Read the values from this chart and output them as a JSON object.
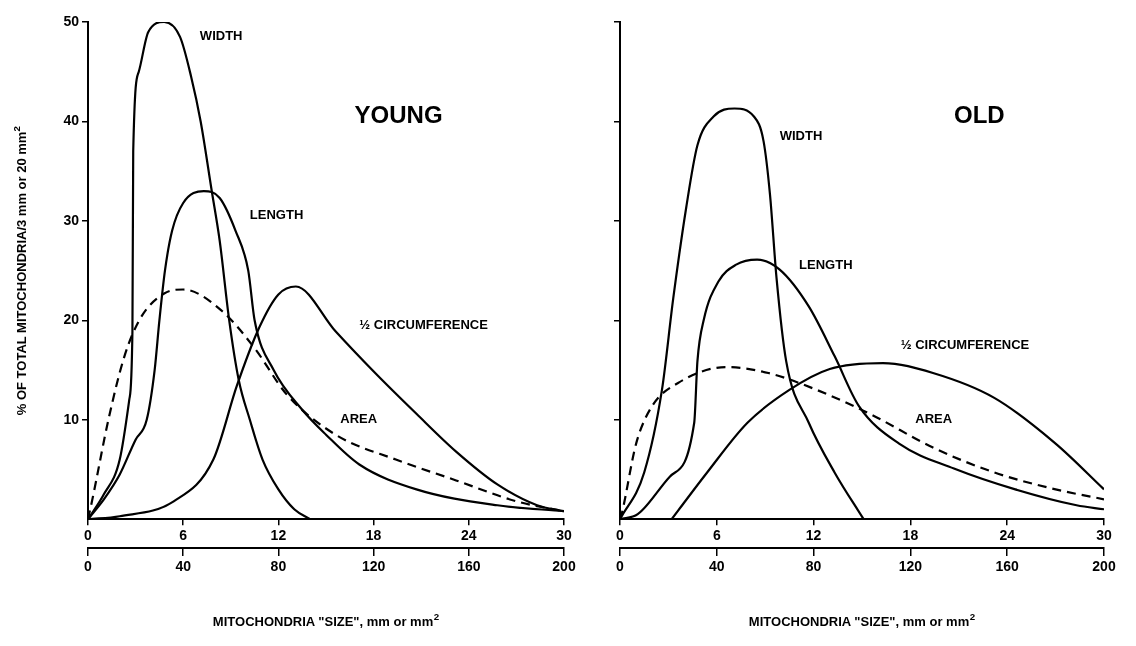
{
  "chart_data": [
    {
      "type": "line",
      "title": "YOUNG",
      "xlabel": "MITOCHONDRIA \"SIZE\", mm or mm$^{2}$",
      "ylabel": "% OF TOTAL MITOCHONDRIA/3 mm or 20 mm$^{2}$",
      "xlim": [
        0,
        30
      ],
      "xticks": [
        0,
        6,
        12,
        18,
        24,
        30
      ],
      "x2lim": [
        0,
        200
      ],
      "x2ticks": [
        0,
        40,
        80,
        120,
        160,
        200
      ],
      "ylim": [
        0,
        50
      ],
      "yticks": [
        10,
        20,
        30,
        40,
        50
      ],
      "grid": false,
      "legend": false,
      "marker": "none",
      "series": [
        {
          "name": "WIDTH",
          "color": "#000000",
          "line_style": "solid",
          "x": [
            0,
            1,
            2,
            2.6,
            2.8,
            2.85,
            3.2,
            3.8,
            4.8,
            5.8,
            6.5,
            7.1,
            7.8,
            8.3,
            8.9,
            9.5,
            10.2,
            11,
            12,
            13,
            14
          ],
          "values": [
            0,
            2.5,
            6,
            12,
            18.9,
            37,
            45,
            49,
            50,
            48.5,
            44.5,
            40,
            33,
            28,
            20,
            14,
            10,
            6,
            3,
            1,
            0
          ]
        },
        {
          "name": "LENGTH",
          "color": "#000000",
          "line_style": "solid",
          "x": [
            0,
            1,
            2,
            3,
            3.7,
            4.2,
            4.5,
            4.85,
            5.3,
            6,
            7.3,
            8.3,
            9.3,
            10.1,
            10.5,
            11.7,
            13.5,
            15,
            17.1,
            20.7,
            25.8,
            30
          ],
          "values": [
            0,
            2,
            4.5,
            8,
            10,
            15,
            20,
            25,
            29,
            31.8,
            33,
            32.3,
            29,
            25,
            20,
            15,
            11,
            8.5,
            5.5,
            3,
            1.4,
            0.8
          ]
        },
        {
          "name": "½ CIRCUMFERENCE",
          "color": "#000000",
          "line_style": "solid",
          "x": [
            0,
            2,
            5.4,
            7.9,
            9.4,
            10.8,
            12,
            13.1,
            15.6,
            18.1,
            20.7,
            23.2,
            25.8,
            28.3,
            30
          ],
          "values": [
            0,
            0.3,
            1.8,
            6,
            13.5,
            19.3,
            22.6,
            23.4,
            18.9,
            14.7,
            10.6,
            6.8,
            3.5,
            1.4,
            0.8
          ]
        },
        {
          "name": "AREA",
          "color": "#000000",
          "line_style": "dashed",
          "x": [
            0,
            0.25,
            1.3,
            2.3,
            3.3,
            4.8,
            6,
            8.4,
            10.5,
            12.5,
            15.6,
            19.4,
            23.2,
            27,
            30
          ],
          "values": [
            0,
            1.8,
            10.1,
            16.4,
            20.2,
            22.7,
            23.1,
            21,
            17.2,
            12.6,
            8.5,
            6,
            3.9,
            1.8,
            0.8
          ]
        }
      ]
    },
    {
      "type": "line",
      "title": "OLD",
      "xlabel": "MITOCHONDRIA \"SIZE\", mm or mm$^{2}$",
      "xlim": [
        0,
        30
      ],
      "xticks": [
        0,
        6,
        12,
        18,
        24,
        30
      ],
      "x2lim": [
        0,
        200
      ],
      "x2ticks": [
        0,
        40,
        80,
        120,
        160,
        200
      ],
      "ylim": [
        0,
        50
      ],
      "yticks": [
        {
          "value": 10,
          "label": null
        },
        {
          "value": 20,
          "label": null
        },
        {
          "value": 30,
          "label": null
        },
        {
          "value": 40,
          "label": null
        },
        {
          "value": 50,
          "label": null
        }
      ],
      "tick_labels": "x",
      "grid": false,
      "legend": false,
      "marker": "none",
      "series": [
        {
          "name": "WIDTH",
          "color": "#000000",
          "line_style": "solid",
          "x": [
            0,
            1.5,
            2.6,
            3.3,
            4.1,
            4.8,
            5.8,
            7.1,
            8.3,
            8.9,
            9.3,
            9.7,
            10.3,
            11.7,
            13.3,
            15.1
          ],
          "values": [
            0,
            4.7,
            13,
            22.2,
            31.3,
            37.6,
            40.5,
            41.3,
            40.5,
            38,
            32.6,
            24.3,
            15.9,
            9.7,
            4.7,
            0
          ]
        },
        {
          "name": "LENGTH",
          "color": "#000000",
          "line_style": "solid",
          "x": [
            0,
            1.1,
            3.1,
            4.6,
            4.8,
            5.2,
            6.1,
            7.2,
            8.5,
            9.9,
            11.7,
            13.3,
            14.8,
            17.3,
            20.7,
            24.5,
            28.3,
            30
          ],
          "values": [
            0,
            0.5,
            4.3,
            9.7,
            15.9,
            20.1,
            23.9,
            25.6,
            26.1,
            25.1,
            21.4,
            16.4,
            11.4,
            7.6,
            5.1,
            3,
            1.4,
            1
          ]
        },
        {
          "name": "½ CIRCUMFERENCE",
          "color": "#000000",
          "line_style": "solid",
          "x": [
            3.2,
            5.4,
            7.9,
            10.5,
            13,
            16.3,
            19.4,
            23.2,
            27,
            30
          ],
          "values": [
            0,
            4.7,
            9.7,
            13,
            15.1,
            15.7,
            14.7,
            12.2,
            7.6,
            3
          ]
        },
        {
          "name": "AREA",
          "color": "#000000",
          "line_style": "dashed",
          "x": [
            0,
            0.1,
            1,
            2,
            3.6,
            6.6,
            9.2,
            12.2,
            15.6,
            19.4,
            23.2,
            27,
            30
          ],
          "values": [
            0,
            0.5,
            7.6,
            11.4,
            13.7,
            15.3,
            14.7,
            13,
            10.5,
            7.2,
            4.7,
            3,
            2
          ]
        }
      ]
    }
  ]
}
